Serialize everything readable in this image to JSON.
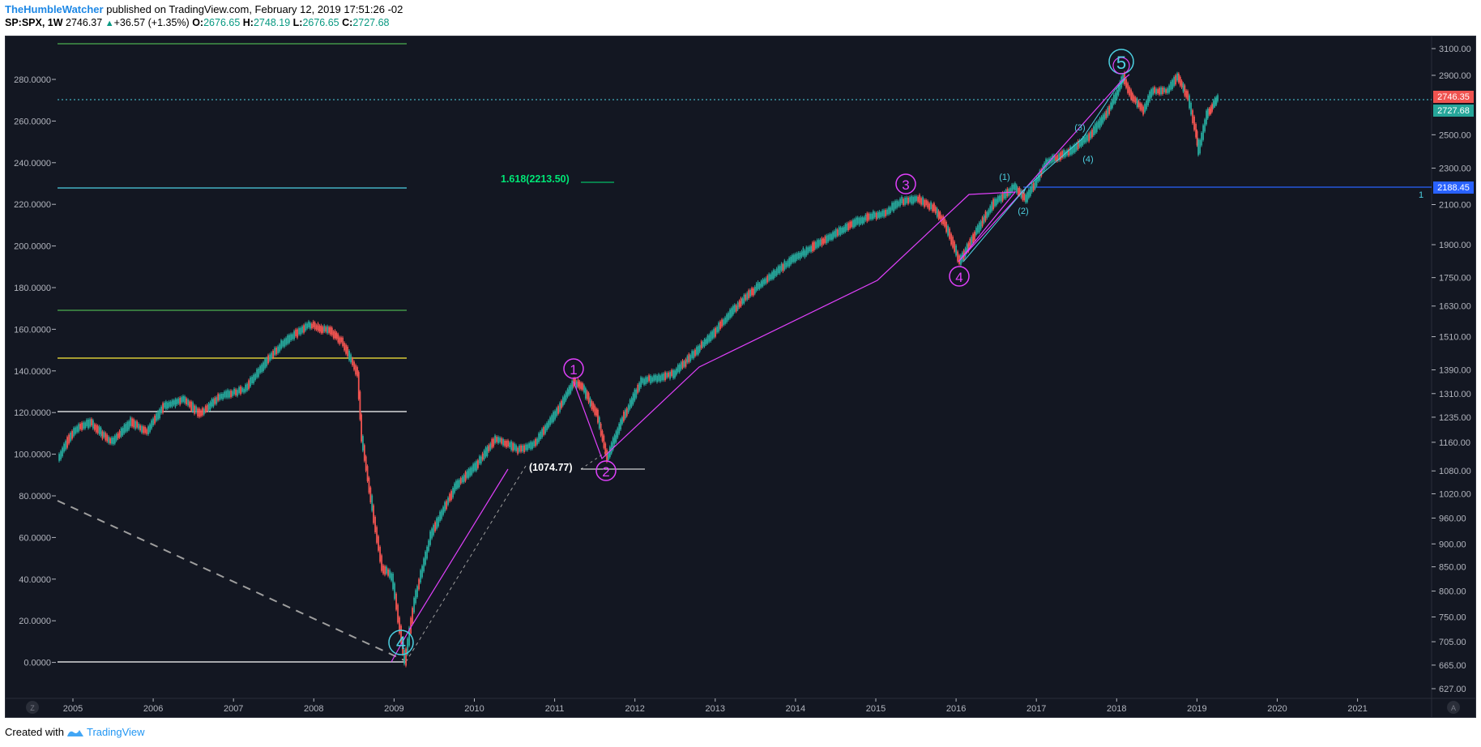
{
  "header": {
    "author": "TheHumbleWatcher",
    "published": "published on TradingView.com, February 12, 2019 17:51:26 -02",
    "symbol": "SP:SPX, 1W",
    "last": "2746.37",
    "change": "+36.57 (+1.35%)",
    "o_label": "O:",
    "o": "2676.65",
    "h_label": "H:",
    "h": "2748.19",
    "l_label": "L:",
    "l": "2676.65",
    "c_label": "C:",
    "c": "2727.68"
  },
  "left_axis": [
    "280.0000",
    "260.0000",
    "240.0000",
    "220.0000",
    "200.0000",
    "180.0000",
    "160.0000",
    "140.0000",
    "120.0000",
    "100.0000",
    "80.0000",
    "60.0000",
    "40.0000",
    "20.0000",
    "0.0000"
  ],
  "right_axis": [
    "3100.00",
    "2900.00",
    "2500.00",
    "2300.00",
    "2100.00",
    "1900.00",
    "1750.00",
    "1630.00",
    "1510.00",
    "1390.00",
    "1310.00",
    "1235.00",
    "1160.00",
    "1080.00",
    "1020.00",
    "960.00",
    "900.00",
    "850.00",
    "800.00",
    "750.00",
    "705.00",
    "665.00",
    "627.00"
  ],
  "time_axis": [
    "2005",
    "2006",
    "2007",
    "2008",
    "2009",
    "2010",
    "2011",
    "2012",
    "2013",
    "2014",
    "2015",
    "2016",
    "2017",
    "2018",
    "2019",
    "2020",
    "2021"
  ],
  "price_tags": {
    "red": "2746.35",
    "green": "2727.68",
    "blue": "2188.45",
    "blue_label": "1"
  },
  "annotations": {
    "fib": "1.618(2213.50)",
    "level": "(1074.77)",
    "wave_major": [
      "4",
      "1",
      "2",
      "3",
      "4",
      "5"
    ],
    "wave_minor": [
      "(1)",
      "(2)",
      "(3)",
      "(4)"
    ]
  },
  "corner_buttons": {
    "left": "Z",
    "right": "A"
  },
  "colors": {
    "up": "#26a69a",
    "down": "#ef5350",
    "wave": "#e040fb",
    "minor": "#4dd0e1"
  },
  "footer": {
    "created": "Created with",
    "brand": "TradingView"
  }
}
